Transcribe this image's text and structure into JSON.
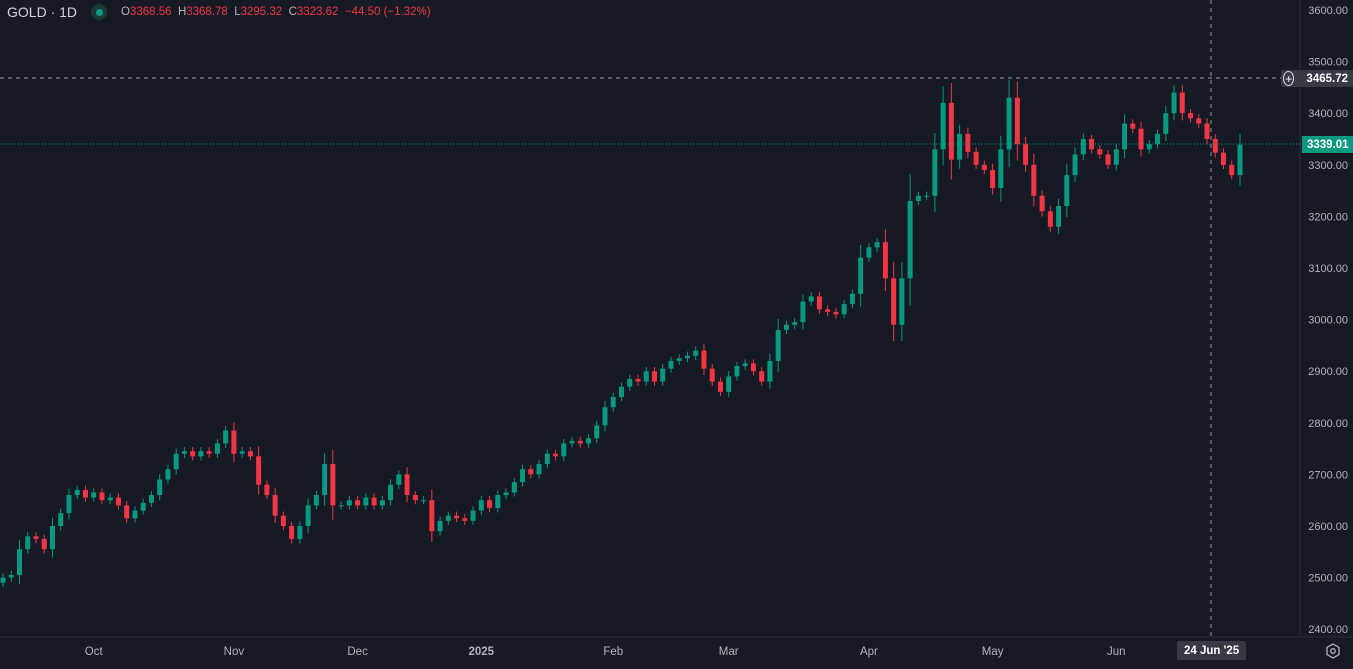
{
  "header": {
    "symbol": "GOLD · 1D",
    "open_label": "O",
    "open": "3368.56",
    "high_label": "H",
    "high": "3368.78",
    "low_label": "L",
    "low": "3295.32",
    "close_label": "C",
    "close": "3323.62",
    "change": "−44.50 (−1.32%)"
  },
  "crosshair": {
    "price": "3465.72",
    "date": "24 Jun '25"
  },
  "last_price": "3339.01",
  "colors": {
    "up": "#089981",
    "down": "#f23645",
    "bg": "#131722",
    "grid": "#2a2e39"
  },
  "chart_data": {
    "type": "candlestick",
    "title": "GOLD · 1D",
    "ylim": [
      2400,
      3600
    ],
    "y_ticks": [
      "3600.00",
      "3500.00",
      "3400.00",
      "3300.00",
      "3200.00",
      "3100.00",
      "3000.00",
      "2900.00",
      "2800.00",
      "2700.00",
      "2600.00",
      "2500.00",
      "2400.00"
    ],
    "x_ticks": [
      {
        "label": "Oct",
        "index": 11
      },
      {
        "label": "Nov",
        "index": 28
      },
      {
        "label": "Dec",
        "index": 43
      },
      {
        "label": "2025",
        "index": 58
      },
      {
        "label": "Feb",
        "index": 74
      },
      {
        "label": "Mar",
        "index": 88
      },
      {
        "label": "Apr",
        "index": 105
      },
      {
        "label": "May",
        "index": 120
      },
      {
        "label": "Jun",
        "index": 135
      }
    ],
    "first_open": 2490,
    "closes": [
      2500,
      2505,
      2555,
      2580,
      2575,
      2555,
      2600,
      2625,
      2660,
      2670,
      2655,
      2665,
      2650,
      2655,
      2640,
      2615,
      2630,
      2645,
      2660,
      2690,
      2710,
      2740,
      2745,
      2735,
      2745,
      2740,
      2760,
      2785,
      2740,
      2745,
      2735,
      2680,
      2660,
      2620,
      2600,
      2575,
      2600,
      2640,
      2660,
      2720,
      2640,
      2640,
      2650,
      2640,
      2655,
      2640,
      2650,
      2680,
      2700,
      2660,
      2650,
      2650,
      2590,
      2610,
      2620,
      2615,
      2610,
      2630,
      2650,
      2635,
      2660,
      2665,
      2685,
      2710,
      2700,
      2720,
      2740,
      2735,
      2760,
      2765,
      2760,
      2770,
      2795,
      2830,
      2850,
      2870,
      2885,
      2880,
      2900,
      2880,
      2905,
      2920,
      2925,
      2930,
      2940,
      2905,
      2880,
      2860,
      2890,
      2910,
      2915,
      2900,
      2880,
      2920,
      2980,
      2990,
      2995,
      3035,
      3045,
      3020,
      3015,
      3010,
      3030,
      3050,
      3120,
      3140,
      3150,
      3080,
      2990,
      3080,
      3230,
      3240,
      3240,
      3330,
      3420,
      3310,
      3360,
      3325,
      3300,
      3290,
      3255,
      3330,
      3430,
      3340,
      3300,
      3240,
      3210,
      3180,
      3220,
      3280,
      3320,
      3350,
      3330,
      3320,
      3300,
      3330,
      3380,
      3370,
      3330,
      3340,
      3360,
      3400,
      3440,
      3400,
      3390,
      3380,
      3350,
      3323.62,
      3300,
      3280,
      3339.01
    ]
  }
}
